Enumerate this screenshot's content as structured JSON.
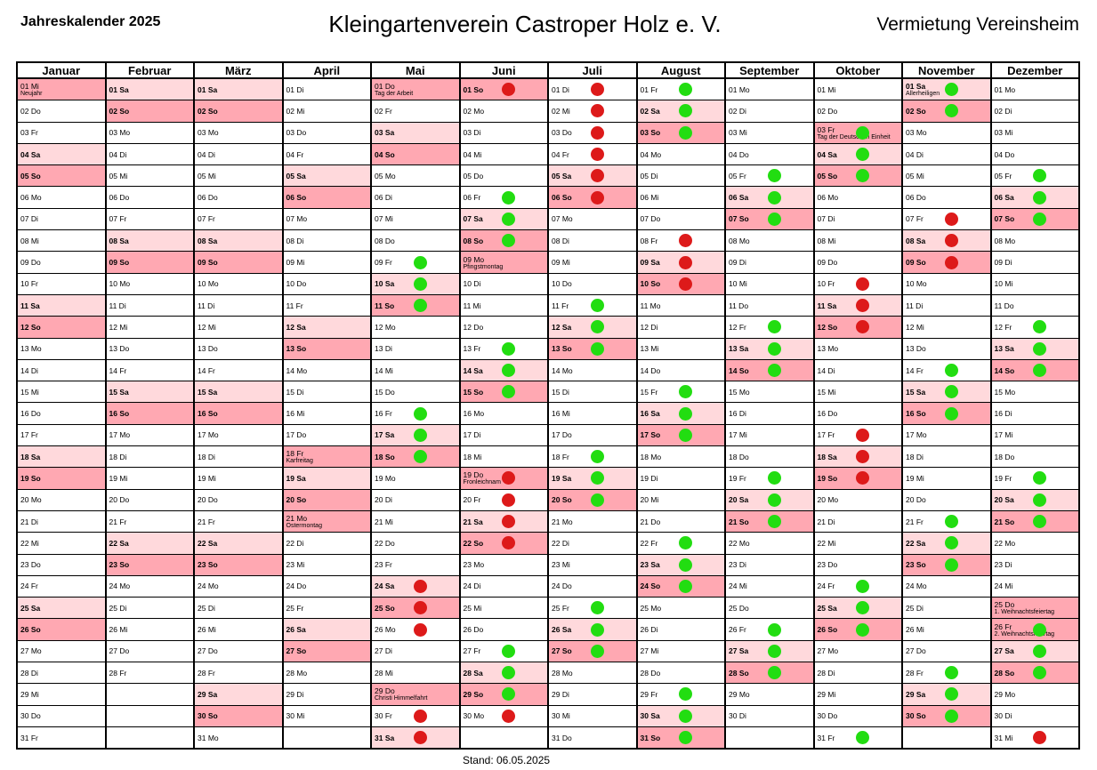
{
  "header": {
    "left": "Jahreskalender 2025",
    "center": "Kleingartenverein Castroper Holz e. V.",
    "right": "Vermietung Vereinsheim"
  },
  "footer": "Stand: 06.05.2025",
  "colors": {
    "saturday": "#ffd9dc",
    "sunday_holiday": "#ffa8b2",
    "available": "#22dd11",
    "booked": "#dd1a1a"
  },
  "months": [
    {
      "name": "Januar",
      "startDow": 3,
      "days": 31,
      "holidays": {
        "1": "Neujahr"
      },
      "green": [],
      "red": []
    },
    {
      "name": "Februar",
      "startDow": 6,
      "days": 28,
      "holidays": {},
      "green": [],
      "red": []
    },
    {
      "name": "März",
      "startDow": 6,
      "days": 31,
      "holidays": {},
      "green": [],
      "red": []
    },
    {
      "name": "April",
      "startDow": 2,
      "days": 30,
      "holidays": {
        "18": "Karfreitag",
        "21": "Ostermontag"
      },
      "green": [],
      "red": []
    },
    {
      "name": "Mai",
      "startDow": 4,
      "days": 31,
      "holidays": {
        "1": "Tag der Arbeit",
        "29": "Christi Himmelfahrt"
      },
      "green": [
        9,
        10,
        11,
        16,
        17,
        18
      ],
      "red": [
        24,
        25,
        26,
        30,
        31
      ]
    },
    {
      "name": "Juni",
      "startDow": 0,
      "days": 30,
      "holidays": {
        "9": "Pfingstmontag",
        "19": "Fronleichnam"
      },
      "green": [
        6,
        7,
        8,
        13,
        14,
        15,
        27,
        28,
        29
      ],
      "red": [
        1,
        19,
        20,
        21,
        22,
        30
      ]
    },
    {
      "name": "Juli",
      "startDow": 2,
      "days": 31,
      "holidays": {},
      "green": [
        11,
        12,
        13,
        18,
        19,
        20,
        25,
        26,
        27
      ],
      "red": [
        1,
        2,
        3,
        4,
        5,
        6
      ]
    },
    {
      "name": "August",
      "startDow": 5,
      "days": 31,
      "holidays": {},
      "green": [
        1,
        2,
        3,
        15,
        16,
        17,
        22,
        23,
        24,
        29,
        30,
        31
      ],
      "red": [
        8,
        9,
        10
      ]
    },
    {
      "name": "September",
      "startDow": 1,
      "days": 30,
      "holidays": {},
      "green": [
        5,
        6,
        7,
        12,
        13,
        14,
        19,
        20,
        21,
        26,
        27,
        28
      ],
      "red": []
    },
    {
      "name": "Oktober",
      "startDow": 3,
      "days": 31,
      "holidays": {
        "3": "Tag der Deutschen Einheit"
      },
      "green": [
        3,
        4,
        5,
        24,
        25,
        26,
        31
      ],
      "red": [
        10,
        11,
        12,
        17,
        18,
        19
      ]
    },
    {
      "name": "November",
      "startDow": 6,
      "days": 30,
      "holidays": {
        "1": "Allerheiligen"
      },
      "green": [
        1,
        2,
        14,
        15,
        16,
        21,
        22,
        23,
        28,
        29,
        30
      ],
      "red": [
        7,
        8,
        9
      ]
    },
    {
      "name": "Dezember",
      "startDow": 1,
      "days": 31,
      "holidays": {
        "25": "1. Weihnachtsfeiertag",
        "26": "2. Weihnachtsfeiertag"
      },
      "green": [
        5,
        6,
        7,
        12,
        13,
        14,
        19,
        20,
        21,
        26,
        27,
        28
      ],
      "red": [
        31
      ]
    }
  ],
  "weekdays": [
    "So",
    "Mo",
    "Di",
    "Mi",
    "Do",
    "Fr",
    "Sa"
  ]
}
